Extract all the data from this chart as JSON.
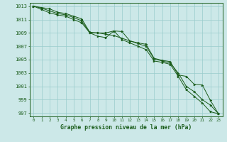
{
  "x_ticks": [
    0,
    1,
    2,
    3,
    4,
    5,
    6,
    7,
    8,
    9,
    10,
    11,
    12,
    13,
    14,
    15,
    16,
    17,
    18,
    19,
    20,
    21,
    22,
    23
  ],
  "ylim": [
    996.5,
    1013.5
  ],
  "yticks": [
    997,
    999,
    1001,
    1003,
    1005,
    1007,
    1009,
    1011,
    1013
  ],
  "xlabel": "Graphe pression niveau de la mer (hPa)",
  "background_color": "#cce8e8",
  "grid_color": "#99cccc",
  "line_color": "#1a5c1a",
  "line1": [
    1013.0,
    1012.8,
    1012.6,
    1012.1,
    1011.9,
    1011.5,
    1011.1,
    1009.1,
    1009.0,
    1009.0,
    1009.3,
    1009.2,
    1007.8,
    1007.5,
    1007.3,
    1005.2,
    1004.9,
    1004.7,
    1002.7,
    1002.5,
    1001.3,
    1001.2,
    998.9,
    996.9
  ],
  "line2": [
    1013.0,
    1012.7,
    1012.3,
    1011.9,
    1011.7,
    1011.3,
    1010.8,
    1009.0,
    1009.0,
    1008.8,
    1008.6,
    1008.2,
    1007.8,
    1007.4,
    1007.0,
    1005.1,
    1004.8,
    1004.5,
    1003.0,
    1001.0,
    1000.2,
    999.0,
    998.2,
    996.9
  ],
  "line3": [
    1013.0,
    1012.5,
    1012.0,
    1011.7,
    1011.5,
    1011.0,
    1010.5,
    1009.0,
    1008.5,
    1008.3,
    1009.3,
    1008.0,
    1007.5,
    1007.0,
    1006.5,
    1004.8,
    1004.6,
    1004.3,
    1002.5,
    1000.5,
    999.5,
    998.5,
    997.2,
    996.9
  ]
}
